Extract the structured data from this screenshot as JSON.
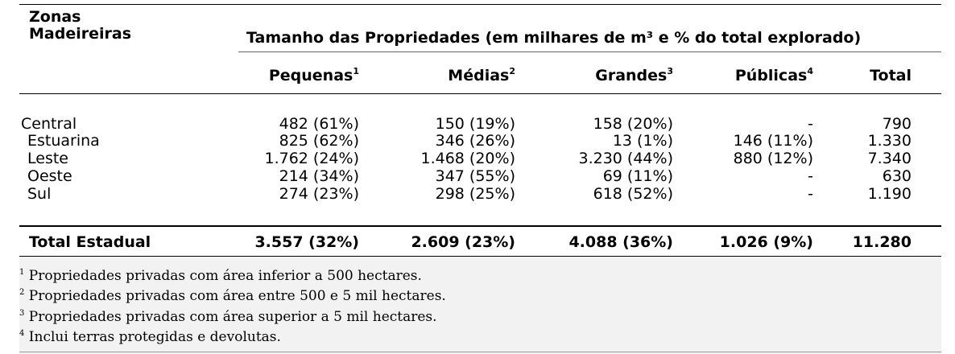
{
  "header": {
    "zone_label_line1": "Zonas",
    "zone_label_line2": "Madeireiras",
    "group_title": "Tamanho das Propriedades (em milhares de m³ e % do total explorado)"
  },
  "columns": [
    {
      "label": "Pequenas",
      "sup": "1"
    },
    {
      "label": "Médias",
      "sup": "2"
    },
    {
      "label": "Grandes",
      "sup": "3"
    },
    {
      "label": "Públicas",
      "sup": "4"
    },
    {
      "label": "Total",
      "sup": ""
    }
  ],
  "rows": [
    {
      "zone": "Central",
      "values": [
        "482 (61%)",
        "150 (19%)",
        "158 (20%)",
        "-",
        "790"
      ]
    },
    {
      "zone": "Estuarina",
      "values": [
        "825 (62%)",
        "346 (26%)",
        "13 (1%)",
        "146 (11%)",
        "1.330"
      ]
    },
    {
      "zone": "Leste",
      "values": [
        "1.762 (24%)",
        "1.468 (20%)",
        "3.230 (44%)",
        "880 (12%)",
        "7.340"
      ]
    },
    {
      "zone": "Oeste",
      "values": [
        "214 (34%)",
        "347 (55%)",
        "69 (11%)",
        "-",
        "630"
      ]
    },
    {
      "zone": "Sul",
      "values": [
        "274 (23%)",
        "298 (25%)",
        "618 (52%)",
        "-",
        "1.190"
      ]
    }
  ],
  "total_row": {
    "zone": "Total Estadual",
    "values": [
      "3.557 (32%)",
      "2.609 (23%)",
      "4.088 (36%)",
      "1.026 (9%)",
      "11.280"
    ]
  },
  "notes": [
    {
      "sup": "1",
      "text": "Propriedades privadas com área inferior a 500 hectares."
    },
    {
      "sup": "2",
      "text": "Propriedades privadas com área entre 500 e 5 mil hectares."
    },
    {
      "sup": "3",
      "text": "Propriedades privadas com área superior a 5 mil hectares."
    },
    {
      "sup": "4",
      "text": "Inclui terras protegidas e devolutas."
    }
  ]
}
